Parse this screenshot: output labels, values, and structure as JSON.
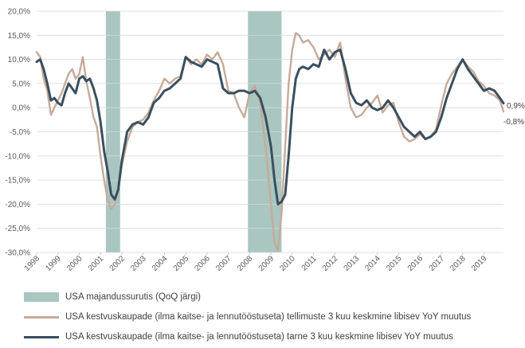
{
  "chart_data": {
    "type": "line",
    "xlabel": "",
    "ylabel": "",
    "xlim": [
      1998,
      2019.92
    ],
    "ylim": [
      -30,
      20
    ],
    "y_ticks": [
      20,
      15,
      10,
      5,
      0,
      -5,
      -10,
      -15,
      -20,
      -25,
      -30
    ],
    "y_tick_labels": [
      "20,0%",
      "15,0%",
      "10,0%",
      "5,0%",
      "0,0%",
      "-5,0%",
      "-10,0%",
      "-15,0%",
      "-20,0%",
      "-25,0%",
      "-30,0%"
    ],
    "x_tick_labels": [
      "1998",
      "1999",
      "2000",
      "2001",
      "2002",
      "2003",
      "2004",
      "2005",
      "2006",
      "2007",
      "2008",
      "2009",
      "2010",
      "2011",
      "2012",
      "2013",
      "2014",
      "2015",
      "2016",
      "2017",
      "2018",
      "2019"
    ],
    "grid": true,
    "legend_placement": "bottom",
    "recessions": [
      {
        "start": 2001.25,
        "end": 2001.92
      },
      {
        "start": 2007.92,
        "end": 2009.5
      }
    ],
    "series": [
      {
        "name": "USA majandussurutis (QoQ järgi)",
        "kind": "band",
        "color": "#a9c6c0"
      },
      {
        "name": "USA kestvuskaupade (ilma kaitse- ja lennutööstuseta) tellimuste 3 kuu keskmine libisev YoY muutus",
        "kind": "line",
        "color": "#c6aa9a",
        "x": [
          1998.0,
          1998.17,
          1998.33,
          1998.5,
          1998.67,
          1998.83,
          1999.0,
          1999.17,
          1999.33,
          1999.5,
          1999.67,
          1999.83,
          2000.0,
          2000.17,
          2000.33,
          2000.5,
          2000.67,
          2000.83,
          2001.0,
          2001.17,
          2001.33,
          2001.5,
          2001.67,
          2001.83,
          2002.0,
          2002.25,
          2002.5,
          2002.75,
          2003.0,
          2003.25,
          2003.5,
          2003.75,
          2004.0,
          2004.25,
          2004.5,
          2004.75,
          2005.0,
          2005.25,
          2005.5,
          2005.75,
          2006.0,
          2006.25,
          2006.5,
          2006.75,
          2007.0,
          2007.25,
          2007.5,
          2007.75,
          2008.0,
          2008.25,
          2008.5,
          2008.75,
          2009.0,
          2009.17,
          2009.33,
          2009.5,
          2009.67,
          2009.83,
          2010.0,
          2010.17,
          2010.33,
          2010.5,
          2010.75,
          2011.0,
          2011.25,
          2011.5,
          2011.75,
          2012.0,
          2012.25,
          2012.5,
          2012.75,
          2013.0,
          2013.25,
          2013.5,
          2013.75,
          2014.0,
          2014.25,
          2014.5,
          2014.75,
          2015.0,
          2015.25,
          2015.5,
          2015.75,
          2016.0,
          2016.25,
          2016.5,
          2016.75,
          2017.0,
          2017.25,
          2017.5,
          2017.75,
          2018.0,
          2018.25,
          2018.5,
          2018.75,
          2019.0,
          2019.25,
          2019.5,
          2019.75,
          2019.92
        ],
        "values": [
          11.5,
          10.5,
          6.0,
          3.5,
          -1.5,
          0.0,
          1.5,
          3.0,
          5.0,
          7.0,
          8.0,
          6.0,
          7.0,
          10.5,
          5.5,
          2.0,
          -2.0,
          -4.0,
          -10.0,
          -15.0,
          -19.0,
          -21.0,
          -20.0,
          -17.0,
          -12.0,
          -7.0,
          -4.0,
          -3.0,
          -2.5,
          -1.0,
          1.5,
          3.5,
          6.0,
          5.0,
          6.0,
          6.5,
          10.5,
          9.0,
          10.0,
          9.0,
          11.0,
          10.0,
          11.5,
          9.0,
          3.5,
          3.0,
          0.0,
          -2.0,
          3.0,
          4.5,
          1.0,
          -8.0,
          -20.0,
          -28.0,
          -29.5,
          -22.0,
          -8.0,
          5.0,
          12.0,
          15.5,
          15.0,
          13.5,
          14.0,
          12.5,
          10.0,
          11.0,
          12.0,
          10.5,
          13.5,
          6.0,
          0.0,
          -2.0,
          -1.5,
          0.0,
          1.0,
          2.5,
          -1.0,
          0.5,
          1.0,
          -3.0,
          -6.0,
          -7.0,
          -6.5,
          -5.5,
          -6.5,
          -6.0,
          -4.5,
          0.5,
          5.0,
          7.0,
          8.5,
          10.0,
          8.5,
          7.5,
          5.5,
          4.5,
          3.0,
          2.5,
          1.5,
          -0.8
        ]
      },
      {
        "name": "USA kestvuskaupade (ilma kaitse- ja lennutööstuseta) tarne 3 kuu keskmine libisev YoY muutus",
        "kind": "line",
        "color": "#3a4f5e",
        "x": [
          1998.0,
          1998.17,
          1998.33,
          1998.5,
          1998.67,
          1998.83,
          1999.0,
          1999.17,
          1999.33,
          1999.5,
          1999.67,
          1999.83,
          2000.0,
          2000.17,
          2000.33,
          2000.5,
          2000.67,
          2000.83,
          2001.0,
          2001.17,
          2001.33,
          2001.5,
          2001.67,
          2001.83,
          2002.0,
          2002.25,
          2002.5,
          2002.75,
          2003.0,
          2003.25,
          2003.5,
          2003.75,
          2004.0,
          2004.25,
          2004.5,
          2004.75,
          2005.0,
          2005.25,
          2005.5,
          2005.75,
          2006.0,
          2006.25,
          2006.5,
          2006.75,
          2007.0,
          2007.25,
          2007.5,
          2007.75,
          2008.0,
          2008.25,
          2008.5,
          2008.75,
          2009.0,
          2009.17,
          2009.33,
          2009.5,
          2009.67,
          2009.83,
          2010.0,
          2010.17,
          2010.33,
          2010.5,
          2010.75,
          2011.0,
          2011.25,
          2011.5,
          2011.75,
          2012.0,
          2012.25,
          2012.5,
          2012.75,
          2013.0,
          2013.25,
          2013.5,
          2013.75,
          2014.0,
          2014.25,
          2014.5,
          2014.75,
          2015.0,
          2015.25,
          2015.5,
          2015.75,
          2016.0,
          2016.25,
          2016.5,
          2016.75,
          2017.0,
          2017.25,
          2017.5,
          2017.75,
          2018.0,
          2018.25,
          2018.5,
          2018.75,
          2019.0,
          2019.25,
          2019.5,
          2019.75,
          2019.92
        ],
        "values": [
          9.5,
          10.0,
          8.0,
          5.0,
          1.5,
          2.0,
          1.0,
          0.5,
          3.0,
          5.0,
          4.0,
          3.0,
          6.0,
          6.5,
          5.5,
          6.0,
          4.0,
          1.5,
          -3.0,
          -9.0,
          -13.0,
          -18.0,
          -19.0,
          -17.0,
          -11.0,
          -5.0,
          -3.5,
          -3.0,
          -3.5,
          -2.0,
          1.0,
          2.0,
          3.5,
          4.0,
          5.0,
          6.0,
          10.5,
          9.5,
          9.0,
          8.5,
          10.0,
          9.5,
          9.0,
          4.0,
          3.0,
          3.0,
          3.5,
          3.5,
          3.0,
          3.5,
          2.0,
          -2.0,
          -8.0,
          -15.0,
          -20.0,
          -19.5,
          -18.0,
          -10.0,
          0.0,
          6.0,
          8.0,
          8.5,
          8.0,
          9.0,
          8.5,
          12.0,
          10.0,
          11.5,
          12.0,
          8.0,
          3.0,
          1.0,
          0.5,
          1.5,
          0.0,
          -0.5,
          0.0,
          1.5,
          0.0,
          -2.0,
          -4.0,
          -5.0,
          -6.0,
          -5.0,
          -6.5,
          -6.0,
          -5.0,
          -2.0,
          2.0,
          5.0,
          8.0,
          10.0,
          8.0,
          6.5,
          5.0,
          3.5,
          4.0,
          3.5,
          2.0,
          0.9
        ]
      }
    ],
    "end_labels": [
      "0,9%",
      "-0,8%"
    ]
  }
}
